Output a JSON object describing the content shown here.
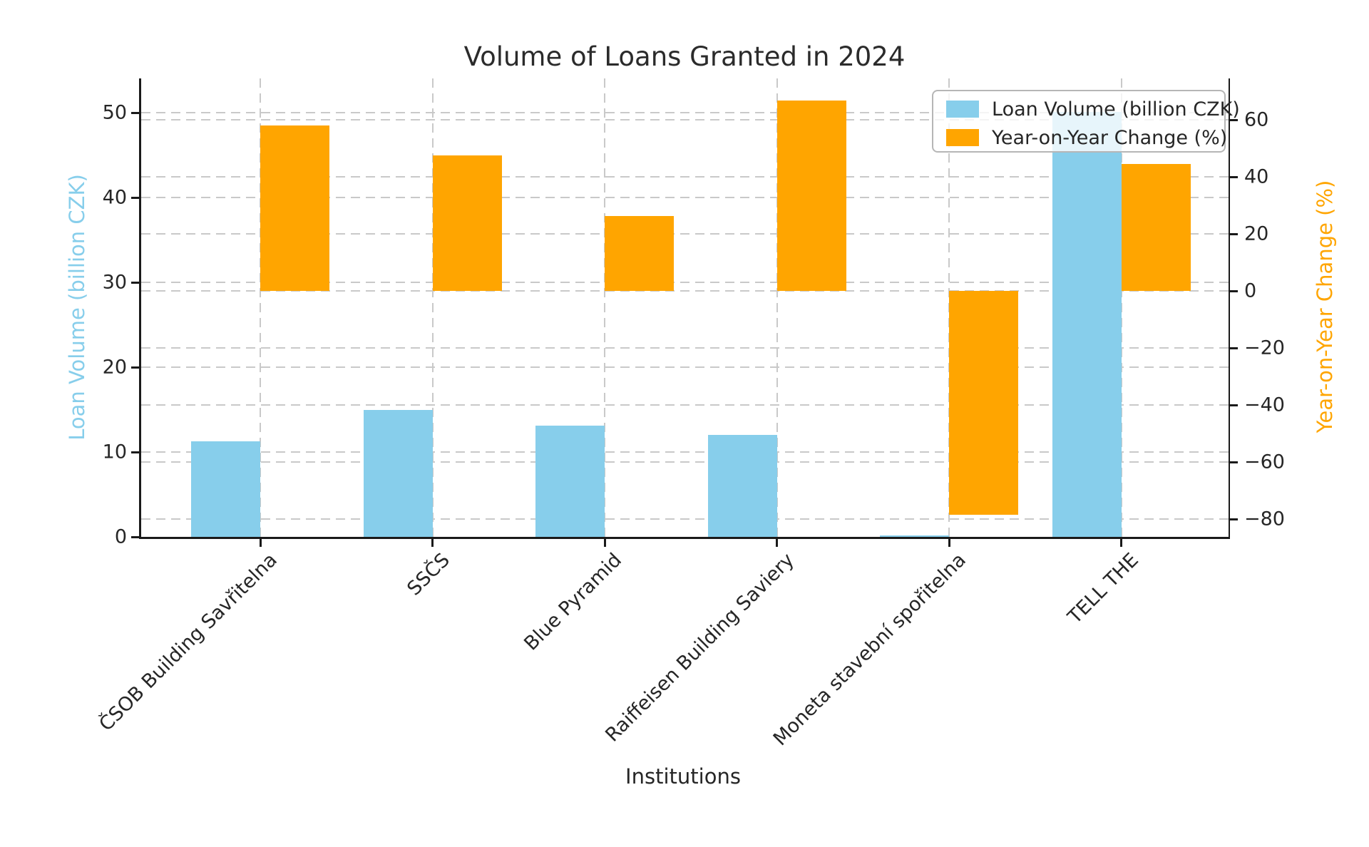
{
  "figure": {
    "background": "#ffffff",
    "text_color": "#262626"
  },
  "chart_data": {
    "type": "bar",
    "title": "Volume of Loans Granted in 2024",
    "xlabel": "Institutions",
    "ylabel_left": "Loan Volume (billion CZK)",
    "ylabel_right": "Year-on-Year Change (%)",
    "categories": [
      "ČSOB Building Savřitelna",
      "SSČS",
      "Blue Pyramid",
      "Raiffeisen Building Saviery",
      "Moneta stavební spořitelna",
      "TELL THE"
    ],
    "series": [
      {
        "name": "Loan Volume (billion CZK)",
        "axis": "left",
        "color": "#87CEEB",
        "values": [
          11.3,
          15.0,
          13.1,
          12.0,
          0.2,
          50.1
        ]
      },
      {
        "name": "Year-on-Year Change (%)",
        "axis": "right",
        "color": "#FFA500",
        "values": [
          58.0,
          47.5,
          26.3,
          66.8,
          -78.4,
          44.5
        ]
      }
    ],
    "left_axis": {
      "ticks": [
        0,
        10,
        20,
        30,
        40,
        50
      ],
      "range": [
        0,
        54.05
      ],
      "label_color": "#87CEEB"
    },
    "right_axis": {
      "ticks": [
        -80,
        -60,
        -40,
        -20,
        0,
        20,
        40,
        60
      ],
      "range": [
        -86.25,
        74.5
      ],
      "label_color": "#FFA500"
    },
    "grid": "dashed",
    "legend_position": "upper right",
    "legend": [
      {
        "label": "Loan Volume (billion CZK)",
        "color": "#87CEEB"
      },
      {
        "label": "Year-on-Year Change (%)",
        "color": "#FFA500"
      }
    ]
  }
}
